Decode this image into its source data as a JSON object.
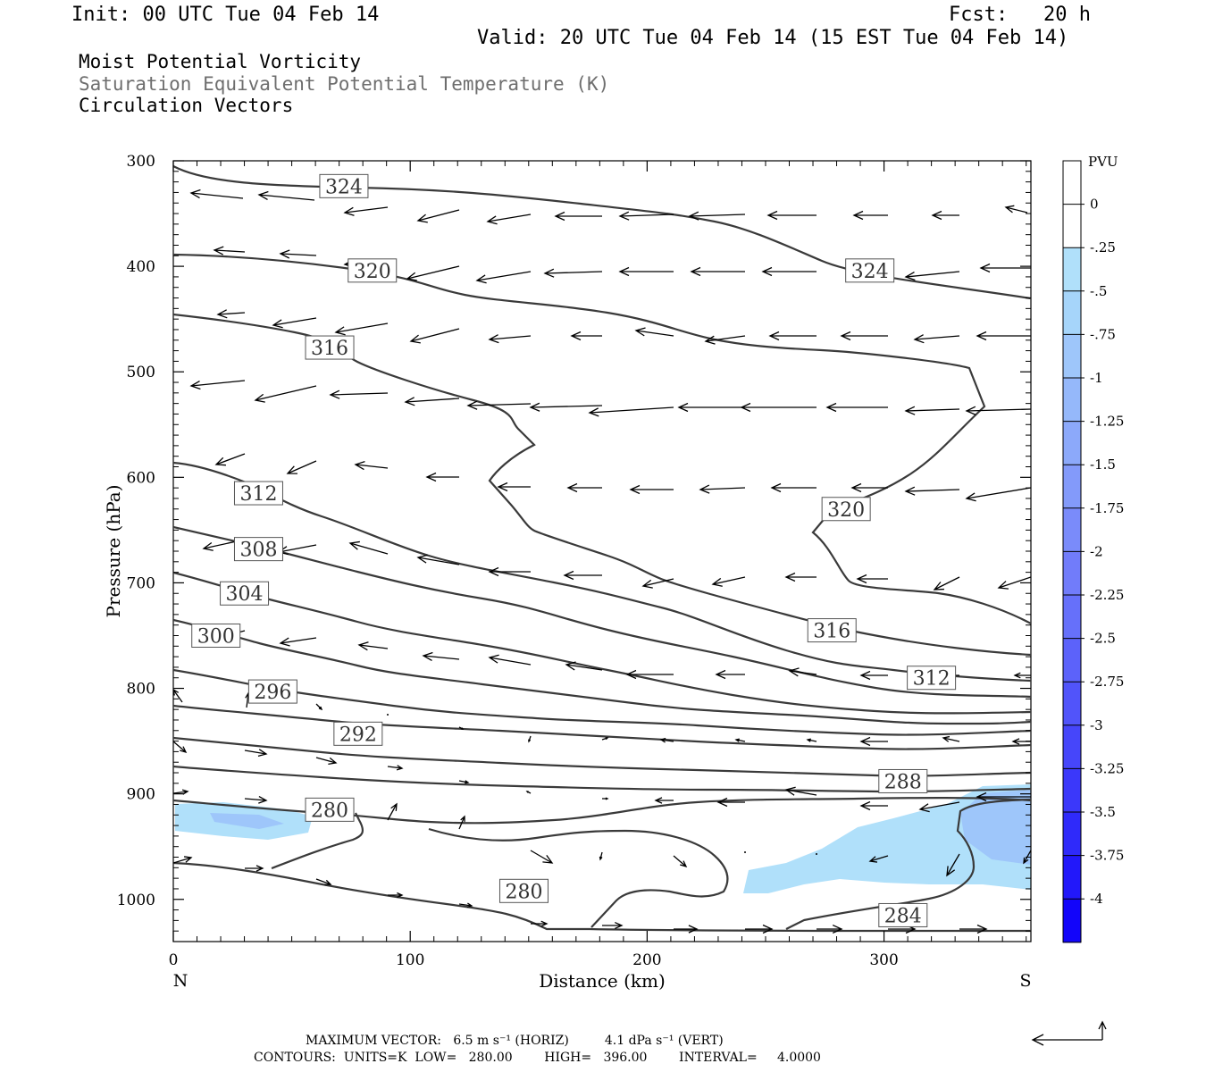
{
  "header": {
    "init": "Init: 00 UTC Tue 04 Feb 14",
    "fcst": "Fcst:   20 h",
    "valid": "Valid: 20 UTC Tue 04 Feb 14 (15 EST Tue 04 Feb 14)"
  },
  "fields": [
    {
      "label": "Moist Potential Vorticity",
      "color": "#000000"
    },
    {
      "label": "Saturation Equivalent Potential Temperature (K)",
      "color": "#6e6e6e"
    },
    {
      "label": "Circulation Vectors",
      "color": "#000000"
    }
  ],
  "chart_data": {
    "type": "cross-section contour",
    "xlabel": "Distance (km)",
    "ylabel": "Pressure (hPa)",
    "xlim": [
      0,
      362
    ],
    "ylim": [
      1040,
      300
    ],
    "x_ticks": [
      "0",
      "100",
      "200",
      "300"
    ],
    "x_end_labels": {
      "left": "N",
      "right": "S"
    },
    "y_ticks": [
      "300",
      "400",
      "500",
      "600",
      "700",
      "800",
      "900",
      "1000"
    ],
    "contour_labels": [
      {
        "text": "324",
        "x": 72,
        "p": 324
      },
      {
        "text": "324",
        "x": 294,
        "p": 404
      },
      {
        "text": "320",
        "x": 84,
        "p": 404
      },
      {
        "text": "320",
        "x": 284,
        "p": 630
      },
      {
        "text": "316",
        "x": 66,
        "p": 477
      },
      {
        "text": "316",
        "x": 278,
        "p": 745
      },
      {
        "text": "312",
        "x": 36,
        "p": 615
      },
      {
        "text": "312",
        "x": 320,
        "p": 790
      },
      {
        "text": "308",
        "x": 36,
        "p": 668
      },
      {
        "text": "304",
        "x": 30,
        "p": 710
      },
      {
        "text": "300",
        "x": 18,
        "p": 750
      },
      {
        "text": "296",
        "x": 42,
        "p": 803
      },
      {
        "text": "292",
        "x": 78,
        "p": 843
      },
      {
        "text": "288",
        "x": 308,
        "p": 888
      },
      {
        "text": "284",
        "x": 308,
        "p": 1015
      },
      {
        "text": "280",
        "x": 66,
        "p": 915
      },
      {
        "text": "280",
        "x": 148,
        "p": 992
      }
    ],
    "colorbar": {
      "unit": "PVU",
      "labels": [
        "0",
        "-.25",
        "-.5",
        "-.75",
        "-1",
        "-1.25",
        "-1.5",
        "-1.75",
        "-2",
        "-2.25",
        "-2.5",
        "-2.75",
        "-3",
        "-3.25",
        "-3.5",
        "-3.75",
        "-4"
      ],
      "colors": [
        "#ffffff",
        "#ffffff",
        "#b0e0fa",
        "#a6d5fa",
        "#9ec6fa",
        "#95b8fa",
        "#8ca9fa",
        "#839afa",
        "#7a8bfa",
        "#717cfa",
        "#6670fa",
        "#5c62fa",
        "#5154fa",
        "#4646fa",
        "#3b38fa",
        "#2f2afa",
        "#2218fa",
        "#1205fa"
      ]
    }
  },
  "footer": {
    "max_vector": "MAXIMUM VECTOR:   6.5 m s⁻¹ (HORIZ)         4.1 dPa s⁻¹ (VERT)",
    "contours": "CONTOURS:  UNITS=K  LOW=   280.00        HIGH=   396.00        INTERVAL=     4.0000"
  }
}
